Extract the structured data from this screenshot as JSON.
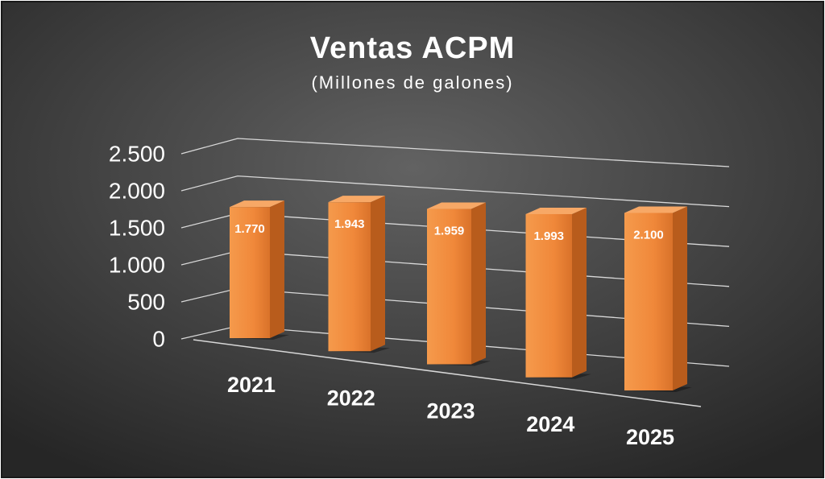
{
  "chart_data": {
    "type": "bar3d",
    "title": "Ventas ACPM",
    "subtitle": "(Millones de galones)",
    "categories": [
      "2021",
      "2022",
      "2023",
      "2024",
      "2025"
    ],
    "values": [
      1770,
      1943,
      1959,
      1993,
      2100
    ],
    "value_labels": [
      "1.770",
      "1.943",
      "1.959",
      "1.993",
      "2.100"
    ],
    "color": "#f0883a",
    "ylim": [
      0,
      2500
    ],
    "yticks": [
      0,
      500,
      {
        "value": 1000,
        "label": "1.000"
      },
      {
        "value": 1500,
        "label": "1.500"
      },
      {
        "value": 2000,
        "label": "2.000"
      },
      {
        "value": 2500,
        "label": "2.500"
      }
    ],
    "grid": true
  }
}
